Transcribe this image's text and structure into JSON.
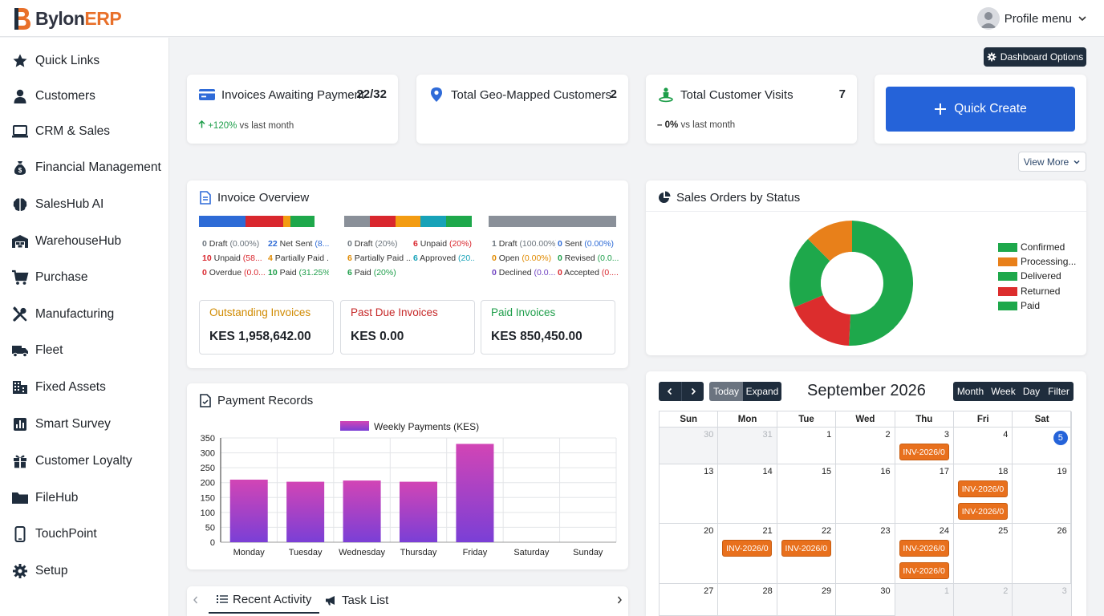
{
  "app": {
    "brand_main": "Bylon",
    "brand_accent": "ERP"
  },
  "profile": {
    "label": "Profile menu"
  },
  "sidebar": {
    "items": [
      {
        "label": "Quick Links",
        "icon": "star-icon"
      },
      {
        "label": "Customers",
        "icon": "user-icon"
      },
      {
        "label": "CRM & Sales",
        "icon": "laptop-icon"
      },
      {
        "label": "Financial Management",
        "icon": "money-bag-icon"
      },
      {
        "label": "SalesHub AI",
        "icon": "brain-icon"
      },
      {
        "label": "WarehouseHub",
        "icon": "warehouse-icon"
      },
      {
        "label": "Purchase",
        "icon": "cart-icon"
      },
      {
        "label": "Manufacturing",
        "icon": "tools-icon"
      },
      {
        "label": "Fleet",
        "icon": "truck-icon"
      },
      {
        "label": "Fixed Assets",
        "icon": "building-icon"
      },
      {
        "label": "Smart Survey",
        "icon": "bar-chart-icon"
      },
      {
        "label": "Customer Loyalty",
        "icon": "gift-icon"
      },
      {
        "label": "FileHub",
        "icon": "folder-icon"
      },
      {
        "label": "TouchPoint",
        "icon": "mobile-icon"
      },
      {
        "label": "Setup",
        "icon": "gear-icon"
      }
    ]
  },
  "toolbar": {
    "dashboard_options": "Dashboard Options",
    "view_more": "View More"
  },
  "stats": {
    "invoices": {
      "title": "Invoices Awaiting Payment",
      "value": "22/32",
      "trend_value": "+120%",
      "trend_suffix": "vs last month"
    },
    "geo": {
      "title": "Total Geo-Mapped Customers",
      "value": "2"
    },
    "visits": {
      "title": "Total Customer Visits",
      "value": "7",
      "trend_value": "0%",
      "trend_suffix": "vs last month"
    },
    "quick_create": "Quick Create"
  },
  "invoice_overview": {
    "title": "Invoice Overview",
    "groups": [
      {
        "segments": [
          {
            "color": "#2e6bd6",
            "share": 0.4
          },
          {
            "color": "#d9272e",
            "share": 0.33
          },
          {
            "color": "#f39c12",
            "share": 0.06
          },
          {
            "color": "#1ea84b",
            "share": 0.21
          }
        ],
        "items": [
          {
            "n": "0",
            "label": "Draft",
            "pct": "(0.00%)",
            "color": "#6c757d"
          },
          {
            "n": "22",
            "label": "Net Sent",
            "pct": "(8...",
            "color": "#2e6bd6"
          },
          {
            "n": "10",
            "label": "Unpaid",
            "pct": "(58...",
            "color": "#d9272e"
          },
          {
            "n": "4",
            "label": "Partially Paid ...",
            "pct": "",
            "color": "#e08a00"
          },
          {
            "n": "0",
            "label": "Overdue",
            "pct": "(0.0...",
            "color": "#d9272e"
          },
          {
            "n": "10",
            "label": "Paid",
            "pct": "(31.25%)",
            "color": "#1e9e4a"
          }
        ]
      },
      {
        "segments": [
          {
            "color": "#8a9099",
            "share": 0.2
          },
          {
            "color": "#d9272e",
            "share": 0.2
          },
          {
            "color": "#f39c12",
            "share": 0.2
          },
          {
            "color": "#17a2b8",
            "share": 0.2
          },
          {
            "color": "#1ea84b",
            "share": 0.2
          }
        ],
        "items": [
          {
            "n": "0",
            "label": "Draft",
            "pct": "(20%)",
            "color": "#6c757d"
          },
          {
            "n": "6",
            "label": "Unpaid",
            "pct": "(20%)",
            "color": "#d9272e"
          },
          {
            "n": "6",
            "label": "Partially Paid ...",
            "pct": "",
            "color": "#e08a00"
          },
          {
            "n": "6",
            "label": "Approved",
            "pct": "(20...",
            "color": "#17a2b8"
          },
          {
            "n": "6",
            "label": "Paid",
            "pct": "(20%)",
            "color": "#1e9e4a"
          }
        ]
      },
      {
        "segments": [
          {
            "color": "#8a9099",
            "share": 1.0
          }
        ],
        "items": [
          {
            "n": "1",
            "label": "Draft",
            "pct": "(100.00%)",
            "color": "#6c757d"
          },
          {
            "n": "0",
            "label": "Sent",
            "pct": "(0.00%)",
            "color": "#2e6bd6"
          },
          {
            "n": "0",
            "label": "Open",
            "pct": "(0.00%)",
            "color": "#e08a00"
          },
          {
            "n": "0",
            "label": "Revised",
            "pct": "(0.0...",
            "color": "#1e9e4a"
          },
          {
            "n": "0",
            "label": "Declined",
            "pct": "(0.0...",
            "color": "#6f42c1"
          },
          {
            "n": "0",
            "label": "Accepted",
            "pct": "(0....",
            "color": "#d9272e"
          }
        ]
      }
    ],
    "summary": [
      {
        "title": "Outstanding Invoices",
        "value": "KES 1,958,642.00",
        "color": "#d08a00"
      },
      {
        "title": "Past Due Invoices",
        "value": "KES 0.00",
        "color": "#c62828"
      },
      {
        "title": "Paid Invoices",
        "value": "KES 850,450.00",
        "color": "#1e9e4a"
      }
    ]
  },
  "sales_orders": {
    "title": "Sales Orders by Status",
    "legend": [
      {
        "label": "Confirmed",
        "color": "#1ea84b"
      },
      {
        "label": "Processing...",
        "color": "#e8801a"
      },
      {
        "label": "Delivered",
        "color": "#1ea84b"
      },
      {
        "label": "Returned",
        "color": "#dc2d2d"
      },
      {
        "label": "Paid",
        "color": "#1ea84b"
      }
    ]
  },
  "payment_records": {
    "title": "Payment Records"
  },
  "chart_data": {
    "type": "bar",
    "categories": [
      "Monday",
      "Tuesday",
      "Wednesday",
      "Thursday",
      "Friday",
      "Saturday",
      "Sunday"
    ],
    "series": [
      {
        "name": "Weekly Payments (KES)",
        "values": [
          210,
          203,
          207,
          203,
          330,
          0,
          0
        ]
      }
    ],
    "yticks": [
      "350",
      "300",
      "250",
      "200",
      "150",
      "100",
      "50",
      "0"
    ],
    "ylim": [
      0,
      350
    ],
    "grid": true,
    "legend_position": "top"
  },
  "calendar": {
    "title": "September 2026",
    "prev": "‹",
    "next": "›",
    "today": "Today",
    "expand": "Expand",
    "views": [
      "Month",
      "Week",
      "Day",
      "Filter"
    ],
    "weekdays": [
      "Sun",
      "Mon",
      "Tue",
      "Wed",
      "Thu",
      "Fri",
      "Sat"
    ],
    "weeks": [
      [
        {
          "d": "30",
          "muted": true
        },
        {
          "d": "31",
          "muted": true
        },
        {
          "d": "1"
        },
        {
          "d": "2"
        },
        {
          "d": "3",
          "events": [
            "INV-2026/0"
          ]
        },
        {
          "d": "4"
        },
        {
          "d": "5",
          "today": true
        }
      ],
      [
        {
          "d": "13"
        },
        {
          "d": "14"
        },
        {
          "d": "15"
        },
        {
          "d": "16"
        },
        {
          "d": "17"
        },
        {
          "d": "18",
          "events": [
            "INV-2026/0",
            "INV-2026/0"
          ]
        },
        {
          "d": "19"
        }
      ],
      [
        {
          "d": "20"
        },
        {
          "d": "21",
          "events": [
            "INV-2026/0"
          ]
        },
        {
          "d": "22",
          "events": [
            "INV-2026/0"
          ]
        },
        {
          "d": "23"
        },
        {
          "d": "24",
          "events": [
            "INV-2026/0",
            "INV-2026/0"
          ]
        },
        {
          "d": "25"
        },
        {
          "d": "26"
        }
      ],
      [
        {
          "d": "27"
        },
        {
          "d": "28"
        },
        {
          "d": "29"
        },
        {
          "d": "30"
        },
        {
          "d": "1",
          "muted": true
        },
        {
          "d": "2",
          "muted": true
        },
        {
          "d": "3",
          "muted": true
        }
      ]
    ]
  },
  "bottom_tabs": {
    "recent_activity": "Recent Activity",
    "task_list": "Task List"
  },
  "colors": {
    "primary": "#2563d9",
    "dark": "#1f2d3d",
    "accent": "#e8702a",
    "event": "#e8701d"
  }
}
